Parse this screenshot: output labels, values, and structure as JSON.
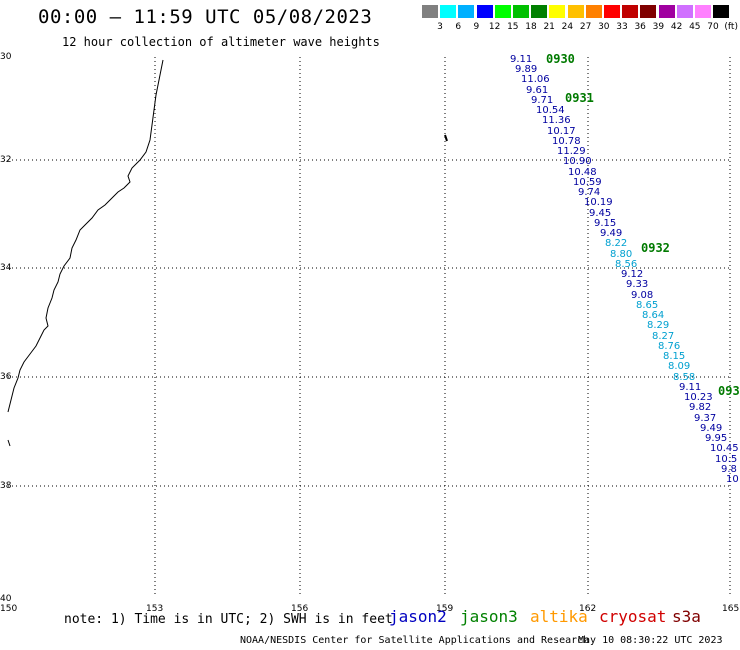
{
  "header": {
    "title": "00:00 – 11:59 UTC 05/08/2023",
    "subtitle": "12 hour collection of altimeter wave heights"
  },
  "colorbar": {
    "colors": [
      "#808080",
      "#00ffff",
      "#00b0ff",
      "#0000ff",
      "#00ff00",
      "#00c000",
      "#008000",
      "#ffff00",
      "#ffc000",
      "#ff8000",
      "#ff0000",
      "#c00000",
      "#800000",
      "#a000a0",
      "#d070ff",
      "#ff80ff",
      "#000000"
    ],
    "labels": [
      "3",
      "6",
      "9",
      "12",
      "15",
      "18",
      "21",
      "24",
      "27",
      "30",
      "33",
      "36",
      "39",
      "42",
      "45",
      "70"
    ],
    "unit": "(ft)"
  },
  "axes": {
    "lat_labels": [
      "30",
      "32",
      "34",
      "36",
      "38",
      "40"
    ],
    "lon_labels": [
      "150",
      "153",
      "156",
      "159",
      "162",
      "165"
    ]
  },
  "track_points": [
    {
      "v": "9.11",
      "c": "#0000a0"
    },
    {
      "v": "9.89",
      "c": "#0000a0"
    },
    {
      "v": "11.06",
      "c": "#0000a0"
    },
    {
      "v": "9.61",
      "c": "#0000a0"
    },
    {
      "v": "9.71",
      "c": "#0000a0"
    },
    {
      "v": "10.54",
      "c": "#0000a0"
    },
    {
      "v": "11.36",
      "c": "#0000a0"
    },
    {
      "v": "10.17",
      "c": "#0000a0"
    },
    {
      "v": "10.78",
      "c": "#0000a0"
    },
    {
      "v": "11.29",
      "c": "#0000a0"
    },
    {
      "v": "10.90",
      "c": "#0000a0"
    },
    {
      "v": "10.48",
      "c": "#0000a0"
    },
    {
      "v": "10.59",
      "c": "#0000a0"
    },
    {
      "v": "9.74",
      "c": "#0000a0"
    },
    {
      "v": "10.19",
      "c": "#0000a0"
    },
    {
      "v": "9.45",
      "c": "#0000a0"
    },
    {
      "v": "9.15",
      "c": "#0000a0"
    },
    {
      "v": "9.49",
      "c": "#0000a0"
    },
    {
      "v": "8.22",
      "c": "#00a0d0"
    },
    {
      "v": "8.80",
      "c": "#00a0d0"
    },
    {
      "v": "8.56",
      "c": "#00a0d0"
    },
    {
      "v": "9.12",
      "c": "#0000a0"
    },
    {
      "v": "9.33",
      "c": "#0000a0"
    },
    {
      "v": "9.08",
      "c": "#0000a0"
    },
    {
      "v": "8.65",
      "c": "#00a0d0"
    },
    {
      "v": "8.64",
      "c": "#00a0d0"
    },
    {
      "v": "8.29",
      "c": "#00a0d0"
    },
    {
      "v": "8.27",
      "c": "#00a0d0"
    },
    {
      "v": "8.76",
      "c": "#00a0d0"
    },
    {
      "v": "8.15",
      "c": "#00a0d0"
    },
    {
      "v": "8.09",
      "c": "#00a0d0"
    },
    {
      "v": "8.58",
      "c": "#00a0d0"
    },
    {
      "v": "9.11",
      "c": "#0000a0"
    },
    {
      "v": "10.23",
      "c": "#0000a0"
    },
    {
      "v": "9.82",
      "c": "#0000a0"
    },
    {
      "v": "9.37",
      "c": "#0000a0"
    },
    {
      "v": "9.49",
      "c": "#0000a0"
    },
    {
      "v": "9.95",
      "c": "#0000a0"
    },
    {
      "v": "10.45",
      "c": "#0000a0"
    },
    {
      "v": "10.5",
      "c": "#0000a0"
    },
    {
      "v": "9.8",
      "c": "#0000a0"
    },
    {
      "v": "10",
      "c": "#0000a0"
    }
  ],
  "time_labels": [
    "0930",
    "0931",
    "0932",
    "093"
  ],
  "footer": {
    "note": "note: 1) Time is in UTC; 2) SWH is in feet",
    "legend": [
      {
        "name": "jason2",
        "color": "#0000c0"
      },
      {
        "name": "jason3",
        "color": "#008000"
      },
      {
        "name": "altika",
        "color": "#ff9900"
      },
      {
        "name": "cryosat",
        "color": "#d00000"
      },
      {
        "name": "s3a",
        "color": "#800000"
      }
    ],
    "credit": "NOAA/NESDIS Center for Satellite Applications and Research",
    "timestamp": "May 10 08:30:22 UTC 2023"
  }
}
